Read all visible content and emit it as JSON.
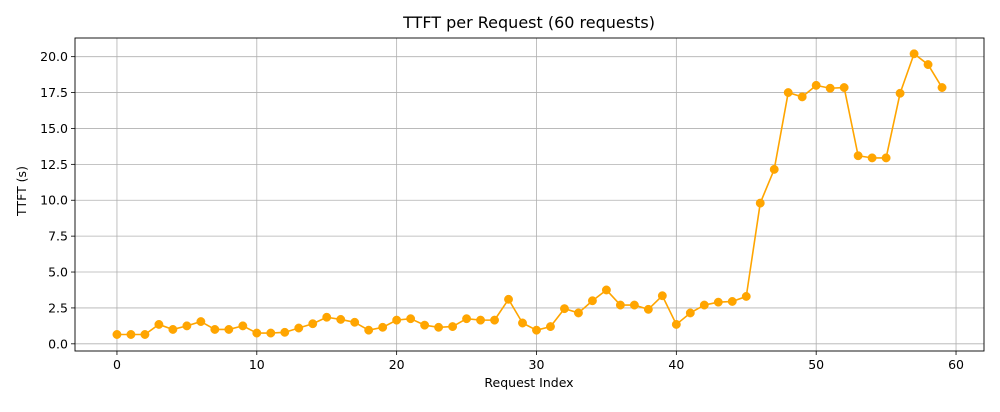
{
  "chart_data": {
    "type": "line",
    "title": "TTFT per Request (60 requests)",
    "xlabel": "Request Index",
    "ylabel": "TTFT (s)",
    "xlim": [
      -3,
      62
    ],
    "ylim": [
      -0.5,
      21.3
    ],
    "xticks": [
      0,
      10,
      20,
      30,
      40,
      50,
      60
    ],
    "yticks": [
      0.0,
      2.5,
      5.0,
      7.5,
      10.0,
      12.5,
      15.0,
      17.5,
      20.0
    ],
    "ytick_labels": [
      "0.0",
      "2.5",
      "5.0",
      "7.5",
      "10.0",
      "12.5",
      "15.0",
      "17.5",
      "20.0"
    ],
    "grid": true,
    "marker": "circle",
    "colors": {
      "series": "#ffa500",
      "grid": "#b0b0b0",
      "axes": "#000000"
    },
    "series": [
      {
        "x": [
          0,
          1,
          2,
          3,
          4,
          5,
          6,
          7,
          8,
          9,
          10,
          11,
          12,
          13,
          14,
          15,
          16,
          17,
          18,
          19,
          20,
          21,
          22,
          23,
          24,
          25,
          26,
          27,
          28,
          29,
          30,
          31,
          32,
          33,
          34,
          35,
          36,
          37,
          38,
          39,
          40,
          41,
          42,
          43,
          44,
          45,
          46,
          47,
          48,
          49,
          50,
          51,
          52,
          53,
          54,
          55,
          56,
          57,
          58,
          59
        ],
        "values": [
          0.65,
          0.65,
          0.65,
          1.35,
          1.0,
          1.25,
          1.55,
          1.0,
          1.0,
          1.25,
          0.75,
          0.75,
          0.8,
          1.1,
          1.4,
          1.85,
          1.7,
          1.5,
          0.95,
          1.15,
          1.65,
          1.75,
          1.3,
          1.15,
          1.2,
          1.75,
          1.65,
          1.65,
          3.1,
          1.45,
          0.95,
          1.2,
          2.45,
          2.15,
          3.0,
          3.75,
          2.7,
          2.7,
          2.4,
          3.35,
          1.35,
          2.15,
          2.7,
          2.9,
          2.95,
          3.3,
          9.8,
          12.15,
          17.5,
          17.2,
          18.0,
          17.8,
          17.85,
          13.1,
          12.95,
          12.95,
          17.45,
          20.2,
          19.45,
          17.85
        ]
      }
    ]
  }
}
